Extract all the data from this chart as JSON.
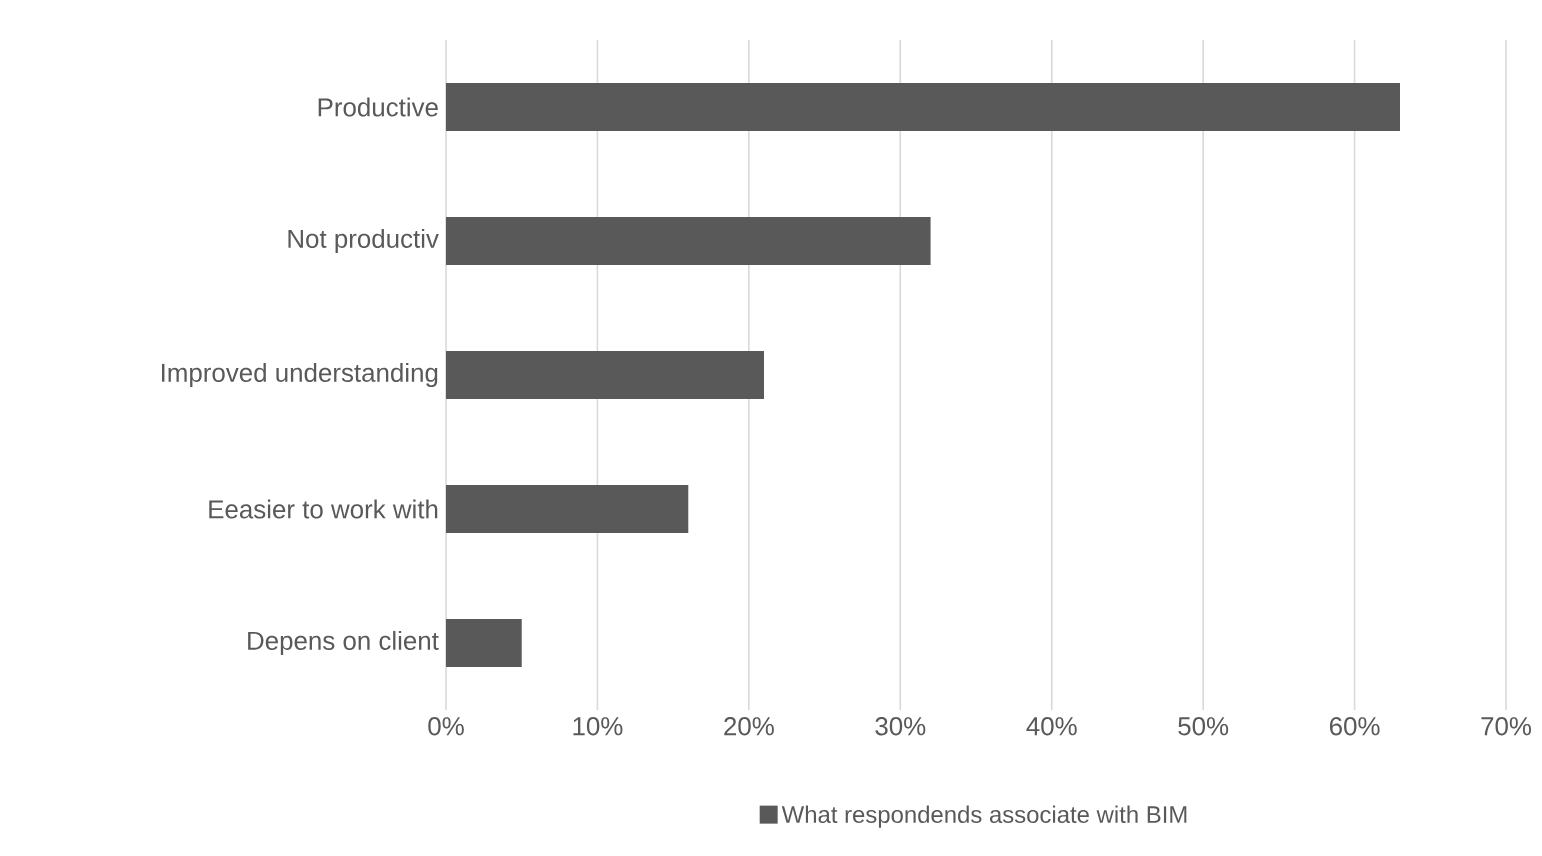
{
  "chart_data": {
    "type": "bar",
    "orientation": "horizontal",
    "categories": [
      "Productive",
      "Not productiv",
      "Improved understanding",
      "Eeasier to work with",
      "Depens on client"
    ],
    "series": [
      {
        "name": "What respondends associate with BIM",
        "color": "#595959",
        "values": [
          63,
          32,
          21,
          16,
          5
        ]
      }
    ],
    "xlim": [
      0,
      70
    ],
    "xticks": [
      {
        "value": 0,
        "label": "0%"
      },
      {
        "value": 10,
        "label": "10%"
      },
      {
        "value": 20,
        "label": "20%"
      },
      {
        "value": 30,
        "label": "30%"
      },
      {
        "value": 40,
        "label": "40%"
      },
      {
        "value": 50,
        "label": "50%"
      },
      {
        "value": 60,
        "label": "60%"
      },
      {
        "value": 70,
        "label": "70%"
      }
    ],
    "grid": "x",
    "legend": "bottom"
  }
}
